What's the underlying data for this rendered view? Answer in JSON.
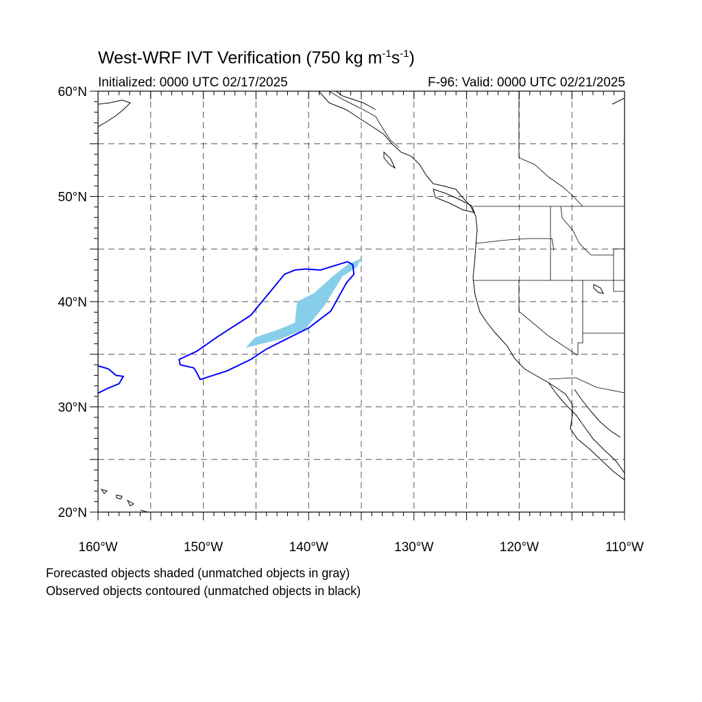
{
  "title": {
    "main": "West-WRF IVT Verification (750 kg m",
    "exp1": "-1",
    "mid": "s",
    "exp2": "-1",
    "end": ")"
  },
  "subtitle_left": "Initialized: 0000 UTC 02/17/2025",
  "subtitle_right": "F-96: Valid: 0000 UTC 02/21/2025",
  "axes": {
    "lon_range": [
      -160,
      -110
    ],
    "lat_range": [
      20,
      60
    ],
    "lat_labels": [
      "20°N",
      "30°N",
      "40°N",
      "50°N",
      "60°N"
    ],
    "lat_label_values": [
      20,
      30,
      40,
      50,
      60
    ],
    "lon_labels": [
      "160°W",
      "150°W",
      "140°W",
      "130°W",
      "120°W",
      "110°W"
    ],
    "lon_label_values": [
      -160,
      -150,
      -140,
      -130,
      -120,
      -110
    ],
    "grid_interval_deg": 5,
    "grid_style": "dashed"
  },
  "colors": {
    "forecast_fill": "#87ceeb",
    "observed_contour": "#0000ff",
    "coastline": "#000000",
    "grid": "#555555"
  },
  "objects": {
    "forecast_shaded": [
      [
        [
          -146,
          35.6
        ],
        [
          -145.1,
          36.6
        ],
        [
          -143,
          37.3
        ],
        [
          -141.3,
          38.0
        ],
        [
          -141.1,
          40.0
        ],
        [
          -139.5,
          40.8
        ],
        [
          -137.6,
          42.5
        ],
        [
          -136.2,
          43.6
        ],
        [
          -135.0,
          44.1
        ],
        [
          -135.4,
          43.3
        ],
        [
          -136.8,
          42.4
        ],
        [
          -138.5,
          39.6
        ],
        [
          -140.3,
          37.4
        ],
        [
          -142.8,
          36.4
        ]
      ]
    ],
    "observed_contours": [
      [
        [
          -140.3,
          43.1
        ],
        [
          -138.9,
          43.0
        ],
        [
          -136.3,
          43.8
        ],
        [
          -135.8,
          43.5
        ],
        [
          -135.7,
          42.6
        ],
        [
          -136.4,
          41.8
        ],
        [
          -137.9,
          39.1
        ],
        [
          -140.0,
          37.5
        ],
        [
          -142.0,
          36.5
        ],
        [
          -144.0,
          35.5
        ],
        [
          -145.5,
          34.5
        ],
        [
          -147.8,
          33.4
        ],
        [
          -150.3,
          32.6
        ],
        [
          -150.6,
          33.2
        ],
        [
          -150.9,
          33.7
        ],
        [
          -152.2,
          34.0
        ],
        [
          -152.3,
          34.5
        ],
        [
          -150.6,
          35.3
        ],
        [
          -148.6,
          36.7
        ],
        [
          -145.5,
          38.7
        ],
        [
          -143.6,
          41.0
        ],
        [
          -142.3,
          42.6
        ],
        [
          -141.3,
          43.0
        ]
      ],
      [
        [
          -160.0,
          33.9
        ],
        [
          -159.0,
          33.6
        ],
        [
          -158.3,
          33.0
        ],
        [
          -157.6,
          32.9
        ],
        [
          -158.0,
          32.2
        ],
        [
          -159.0,
          31.8
        ],
        [
          -160.0,
          31.3
        ]
      ]
    ]
  },
  "captions": [
    "Forecasted objects shaded (unmatched objects in gray)",
    "Observed objects contoured (unmatched objects in black)"
  ]
}
